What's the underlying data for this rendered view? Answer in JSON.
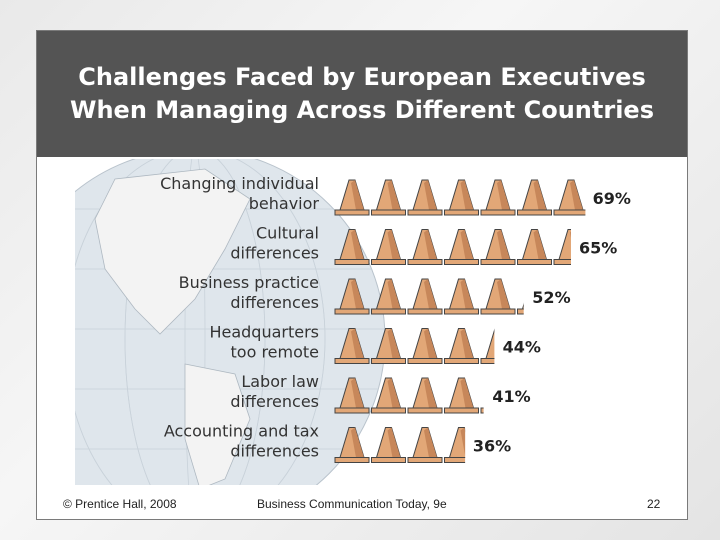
{
  "title": {
    "line1": "Challenges Faced by European Executives",
    "line2": "When Managing Across Different Countries"
  },
  "footer": {
    "copyright": "© Prentice Hall, 2008",
    "book": "Business Communication Today, 9e",
    "page": "22"
  },
  "colors": {
    "title_bg": "#545454",
    "cone_fill": "#e2a777",
    "cone_shade": "#c7875a",
    "globe_ocean": "#dfe6ec",
    "globe_land": "#f3f3f3"
  },
  "chart_data": {
    "type": "bar",
    "title": "",
    "xlabel": "",
    "ylabel": "",
    "marker": "traffic-cone-icon",
    "cone_unit_percent": 10,
    "xlim": [
      0,
      70
    ],
    "categories": [
      [
        "Changing individual",
        "behavior"
      ],
      [
        "Cultural",
        "differences"
      ],
      [
        "Business practice",
        "differences"
      ],
      [
        "Headquarters",
        "too remote"
      ],
      [
        "Labor law",
        "differences"
      ],
      [
        "Accounting and tax",
        "differences"
      ]
    ],
    "values": [
      69,
      65,
      52,
      44,
      41,
      36
    ],
    "value_labels": [
      "69%",
      "65%",
      "52%",
      "44%",
      "41%",
      "36%"
    ]
  }
}
